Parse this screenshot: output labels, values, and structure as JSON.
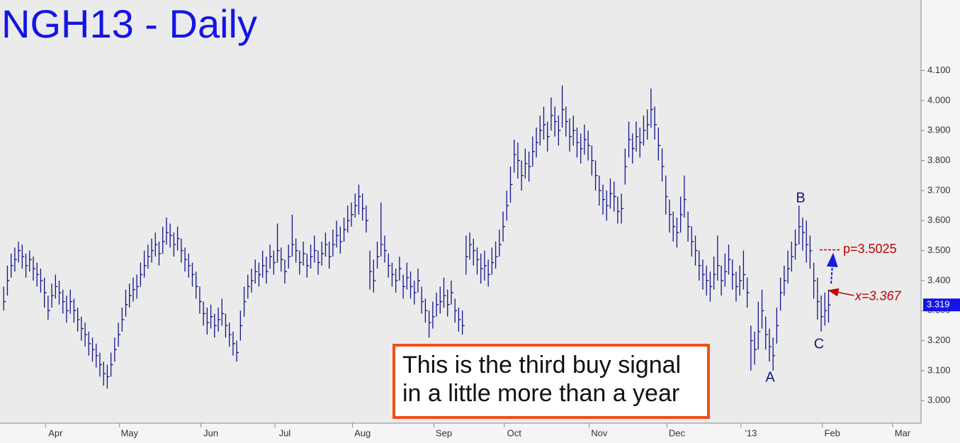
{
  "chart_data": {
    "type": "ohlc",
    "title": "NGH13 - Daily",
    "color": "#14148c",
    "ylim": [
      2.925,
      4.335
    ],
    "yticks": [
      {
        "value": 3.0,
        "label": "3.000"
      },
      {
        "value": 3.1,
        "label": "3.100"
      },
      {
        "value": 3.2,
        "label": "3.200"
      },
      {
        "value": 3.3,
        "label": "3.300"
      },
      {
        "value": 3.4,
        "label": "3.400"
      },
      {
        "value": 3.5,
        "label": "3.500"
      },
      {
        "value": 3.6,
        "label": "3.600"
      },
      {
        "value": 3.7,
        "label": "3.700"
      },
      {
        "value": 3.8,
        "label": "3.800"
      },
      {
        "value": 3.9,
        "label": "3.900"
      },
      {
        "value": 4.0,
        "label": "4.000"
      },
      {
        "value": 4.1,
        "label": "4.100"
      }
    ],
    "xlim": [
      -1,
      248
    ],
    "xticks": [
      {
        "value": 14,
        "label": "Apr"
      },
      {
        "value": 34,
        "label": "May"
      },
      {
        "value": 56,
        "label": "Jun"
      },
      {
        "value": 76,
        "label": "Jul"
      },
      {
        "value": 97,
        "label": "Aug"
      },
      {
        "value": 119,
        "label": "Sep"
      },
      {
        "value": 138,
        "label": "Oct"
      },
      {
        "value": 161,
        "label": "Nov"
      },
      {
        "value": 182,
        "label": "Dec"
      },
      {
        "value": 202,
        "label": "'13"
      },
      {
        "value": 224,
        "label": "Feb"
      },
      {
        "value": 243,
        "label": "Mar"
      }
    ],
    "high": [
      3.38,
      3.45,
      3.49,
      3.51,
      3.53,
      3.52,
      3.49,
      3.5,
      3.48,
      3.46,
      3.44,
      3.41,
      3.35,
      3.39,
      3.42,
      3.4,
      3.37,
      3.35,
      3.37,
      3.34,
      3.31,
      3.28,
      3.26,
      3.23,
      3.21,
      3.19,
      3.16,
      3.13,
      3.12,
      3.16,
      3.21,
      3.26,
      3.31,
      3.37,
      3.39,
      3.41,
      3.42,
      3.46,
      3.5,
      3.52,
      3.54,
      3.56,
      3.53,
      3.58,
      3.61,
      3.59,
      3.56,
      3.58,
      3.54,
      3.51,
      3.49,
      3.46,
      3.43,
      3.38,
      3.33,
      3.31,
      3.32,
      3.29,
      3.31,
      3.34,
      3.29,
      3.26,
      3.23,
      3.2,
      3.3,
      3.38,
      3.42,
      3.44,
      3.47,
      3.46,
      3.5,
      3.48,
      3.52,
      3.5,
      3.59,
      3.51,
      3.47,
      3.52,
      3.62,
      3.54,
      3.5,
      3.53,
      3.49,
      3.52,
      3.55,
      3.5,
      3.53,
      3.56,
      3.53,
      3.57,
      3.6,
      3.58,
      3.61,
      3.65,
      3.66,
      3.69,
      3.72,
      3.69,
      3.65,
      3.5,
      3.47,
      3.53,
      3.66,
      3.55,
      3.49,
      3.46,
      3.44,
      3.48,
      3.42,
      3.46,
      3.43,
      3.4,
      3.44,
      3.38,
      3.34,
      3.3,
      3.33,
      3.36,
      3.38,
      3.41,
      3.37,
      3.4,
      3.34,
      3.31,
      3.3,
      3.55,
      3.56,
      3.54,
      3.51,
      3.49,
      3.5,
      3.47,
      3.51,
      3.53,
      3.57,
      3.63,
      3.7,
      3.78,
      3.87,
      3.86,
      3.8,
      3.84,
      3.83,
      3.88,
      3.91,
      3.95,
      3.98,
      3.93,
      4.01,
      3.98,
      3.95,
      4.05,
      3.98,
      3.94,
      3.95,
      3.91,
      3.89,
      3.92,
      3.9,
      3.85,
      3.8,
      3.75,
      3.72,
      3.7,
      3.74,
      3.73,
      3.68,
      3.69,
      3.84,
      3.93,
      3.89,
      3.93,
      3.91,
      3.95,
      3.97,
      4.04,
      3.98,
      3.91,
      3.84,
      3.75,
      3.67,
      3.63,
      3.61,
      3.68,
      3.75,
      3.63,
      3.58,
      3.55,
      3.5,
      3.47,
      3.45,
      3.43,
      3.48,
      3.55,
      3.45,
      3.49,
      3.52,
      3.47,
      3.43,
      3.45,
      3.5,
      3.41,
      3.25,
      3.23,
      3.33,
      3.37,
      3.28,
      3.24,
      3.21,
      3.31,
      3.41,
      3.45,
      3.5,
      3.53,
      3.57,
      3.65,
      3.61,
      3.6,
      3.55,
      3.46,
      3.41,
      3.35,
      3.36,
      3.37
    ],
    "low": [
      3.3,
      3.35,
      3.41,
      3.43,
      3.46,
      3.44,
      3.41,
      3.43,
      3.4,
      3.38,
      3.36,
      3.31,
      3.27,
      3.31,
      3.34,
      3.32,
      3.29,
      3.26,
      3.29,
      3.26,
      3.23,
      3.2,
      3.18,
      3.15,
      3.13,
      3.11,
      3.08,
      3.05,
      3.04,
      3.08,
      3.13,
      3.18,
      3.23,
      3.28,
      3.31,
      3.33,
      3.34,
      3.38,
      3.41,
      3.44,
      3.46,
      3.48,
      3.45,
      3.49,
      3.52,
      3.51,
      3.48,
      3.5,
      3.46,
      3.43,
      3.41,
      3.38,
      3.34,
      3.29,
      3.25,
      3.22,
      3.24,
      3.21,
      3.23,
      3.25,
      3.21,
      3.18,
      3.15,
      3.13,
      3.2,
      3.28,
      3.34,
      3.36,
      3.39,
      3.38,
      3.41,
      3.39,
      3.44,
      3.42,
      3.46,
      3.43,
      3.39,
      3.44,
      3.48,
      3.46,
      3.42,
      3.45,
      3.41,
      3.44,
      3.46,
      3.42,
      3.45,
      3.48,
      3.44,
      3.48,
      3.51,
      3.49,
      3.53,
      3.56,
      3.58,
      3.61,
      3.62,
      3.6,
      3.56,
      3.37,
      3.36,
      3.44,
      3.48,
      3.46,
      3.41,
      3.38,
      3.36,
      3.4,
      3.34,
      3.37,
      3.34,
      3.32,
      3.36,
      3.29,
      3.26,
      3.21,
      3.24,
      3.28,
      3.29,
      3.31,
      3.28,
      3.32,
      3.26,
      3.23,
      3.22,
      3.42,
      3.47,
      3.45,
      3.42,
      3.39,
      3.4,
      3.38,
      3.42,
      3.44,
      3.48,
      3.53,
      3.6,
      3.66,
      3.76,
      3.74,
      3.7,
      3.74,
      3.73,
      3.78,
      3.81,
      3.85,
      3.87,
      3.83,
      3.9,
      3.88,
      3.85,
      3.91,
      3.88,
      3.83,
      3.85,
      3.81,
      3.79,
      3.82,
      3.8,
      3.75,
      3.7,
      3.65,
      3.62,
      3.6,
      3.64,
      3.63,
      3.59,
      3.59,
      3.72,
      3.81,
      3.79,
      3.83,
      3.81,
      3.85,
      3.87,
      3.91,
      3.87,
      3.8,
      3.73,
      3.62,
      3.56,
      3.53,
      3.51,
      3.56,
      3.61,
      3.53,
      3.48,
      3.45,
      3.4,
      3.37,
      3.35,
      3.33,
      3.37,
      3.4,
      3.35,
      3.38,
      3.42,
      3.37,
      3.33,
      3.35,
      3.37,
      3.31,
      3.1,
      3.12,
      3.17,
      3.24,
      3.17,
      3.13,
      3.1,
      3.19,
      3.3,
      3.35,
      3.39,
      3.43,
      3.47,
      3.52,
      3.5,
      3.46,
      3.44,
      3.34,
      3.27,
      3.23,
      3.25,
      3.26
    ],
    "close": [
      3.33,
      3.4,
      3.45,
      3.47,
      3.5,
      3.48,
      3.45,
      3.47,
      3.44,
      3.42,
      3.4,
      3.36,
      3.3,
      3.35,
      3.38,
      3.36,
      3.33,
      3.3,
      3.33,
      3.3,
      3.27,
      3.24,
      3.22,
      3.19,
      3.17,
      3.15,
      3.12,
      3.09,
      3.08,
      3.12,
      3.17,
      3.22,
      3.27,
      3.32,
      3.35,
      3.37,
      3.38,
      3.42,
      3.45,
      3.48,
      3.5,
      3.52,
      3.49,
      3.53,
      3.56,
      3.55,
      3.52,
      3.54,
      3.5,
      3.47,
      3.45,
      3.42,
      3.38,
      3.33,
      3.29,
      3.26,
      3.28,
      3.25,
      3.27,
      3.29,
      3.25,
      3.22,
      3.19,
      3.16,
      3.25,
      3.33,
      3.38,
      3.4,
      3.43,
      3.42,
      3.45,
      3.43,
      3.48,
      3.46,
      3.5,
      3.47,
      3.43,
      3.48,
      3.52,
      3.5,
      3.46,
      3.49,
      3.45,
      3.48,
      3.5,
      3.46,
      3.49,
      3.52,
      3.48,
      3.52,
      3.55,
      3.53,
      3.57,
      3.6,
      3.62,
      3.65,
      3.68,
      3.64,
      3.6,
      3.43,
      3.4,
      3.48,
      3.52,
      3.5,
      3.45,
      3.42,
      3.4,
      3.44,
      3.38,
      3.41,
      3.38,
      3.36,
      3.4,
      3.33,
      3.3,
      3.26,
      3.28,
      3.32,
      3.33,
      3.35,
      3.32,
      3.36,
      3.3,
      3.27,
      3.25,
      3.48,
      3.52,
      3.5,
      3.47,
      3.44,
      3.45,
      3.42,
      3.46,
      3.48,
      3.52,
      3.58,
      3.65,
      3.72,
      3.82,
      3.8,
      3.75,
      3.79,
      3.78,
      3.83,
      3.86,
      3.9,
      3.92,
      3.88,
      3.95,
      3.93,
      3.9,
      3.97,
      3.93,
      3.88,
      3.9,
      3.86,
      3.84,
      3.87,
      3.85,
      3.8,
      3.75,
      3.7,
      3.67,
      3.65,
      3.69,
      3.68,
      3.63,
      3.64,
      3.78,
      3.87,
      3.84,
      3.88,
      3.86,
      3.9,
      3.92,
      3.97,
      3.92,
      3.85,
      3.78,
      3.68,
      3.62,
      3.58,
      3.56,
      3.62,
      3.67,
      3.58,
      3.53,
      3.5,
      3.45,
      3.42,
      3.4,
      3.38,
      3.42,
      3.45,
      3.4,
      3.43,
      3.47,
      3.42,
      3.38,
      3.4,
      3.42,
      3.36,
      3.2,
      3.17,
      3.23,
      3.3,
      3.22,
      3.18,
      3.15,
      3.25,
      3.36,
      3.4,
      3.44,
      3.48,
      3.52,
      3.58,
      3.56,
      3.52,
      3.5,
      3.4,
      3.33,
      3.28,
      3.3,
      3.319
    ],
    "wave_labels": [
      "A",
      "B",
      "C"
    ],
    "target": {
      "label": "p=3.5025",
      "value": 3.5025
    },
    "trigger": {
      "label": "x=3.367",
      "value": 3.367
    },
    "last_price": {
      "label": "3.319",
      "value": 3.319
    },
    "note": [
      "This is the third buy signal",
      "in a little more than a year"
    ]
  }
}
